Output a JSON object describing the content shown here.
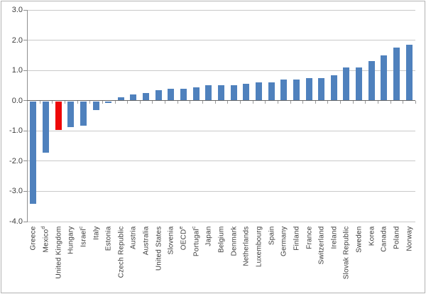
{
  "chart_data": {
    "type": "bar",
    "title": "",
    "xlabel": "",
    "ylabel": "",
    "legend": "none",
    "grid": true,
    "ylim": [
      -4.0,
      3.0
    ],
    "yticks": [
      {
        "value": 3.0,
        "label": "3.0"
      },
      {
        "value": 2.0,
        "label": "2.0"
      },
      {
        "value": 1.0,
        "label": "1.0"
      },
      {
        "value": 0.0,
        "label": "0.0"
      },
      {
        "value": -1.0,
        "label": "-1.0"
      },
      {
        "value": -2.0,
        "label": "-2.0"
      },
      {
        "value": -3.0,
        "label": "-3.0"
      },
      {
        "value": -4.0,
        "label": "-4.0"
      }
    ],
    "categories": [
      {
        "label": "Greece"
      },
      {
        "label": "Mexico",
        "sup": "d"
      },
      {
        "label": "United Kingdom"
      },
      {
        "label": "Hungary"
      },
      {
        "label": "Israel",
        "sup": "c"
      },
      {
        "label": "Italy"
      },
      {
        "label": "Estonia"
      },
      {
        "label": "Czech Republic"
      },
      {
        "label": "Austria"
      },
      {
        "label": "Australia"
      },
      {
        "label": "United States"
      },
      {
        "label": "Slovenia"
      },
      {
        "label": "OECD",
        "sup": "e"
      },
      {
        "label": "Portugal",
        "sup": "c"
      },
      {
        "label": "Japan"
      },
      {
        "label": "Belgium"
      },
      {
        "label": "Denmark"
      },
      {
        "label": "Netherlands"
      },
      {
        "label": "Luxembourg"
      },
      {
        "label": "Spain"
      },
      {
        "label": "Germany"
      },
      {
        "label": "Finland"
      },
      {
        "label": "France"
      },
      {
        "label": "Switzerland"
      },
      {
        "label": "Ireland"
      },
      {
        "label": "Slovak Republic"
      },
      {
        "label": "Sweden"
      },
      {
        "label": "Korea"
      },
      {
        "label": "Canada"
      },
      {
        "label": "Poland"
      },
      {
        "label": "Norway"
      }
    ],
    "values": [
      -3.4,
      -1.7,
      -0.95,
      -0.85,
      -0.8,
      -0.3,
      -0.05,
      0.1,
      0.2,
      0.25,
      0.35,
      0.4,
      0.4,
      0.45,
      0.5,
      0.5,
      0.5,
      0.55,
      0.6,
      0.6,
      0.7,
      0.7,
      0.75,
      0.75,
      0.85,
      1.1,
      1.1,
      1.3,
      1.5,
      1.75,
      1.85
    ],
    "highlight": {
      "category": "United Kingdom",
      "index": 2
    }
  },
  "colors": {
    "bar": "#4f81bd",
    "highlight_bar": "#ee0808",
    "gridline": "#c9c9c9",
    "zero_line": "#666666",
    "axis_line": "#8f8f8f",
    "tick": "#9a9a9a",
    "text": "#3d3d3d",
    "frame": "#b3b3b3",
    "background": "#ffffff"
  }
}
